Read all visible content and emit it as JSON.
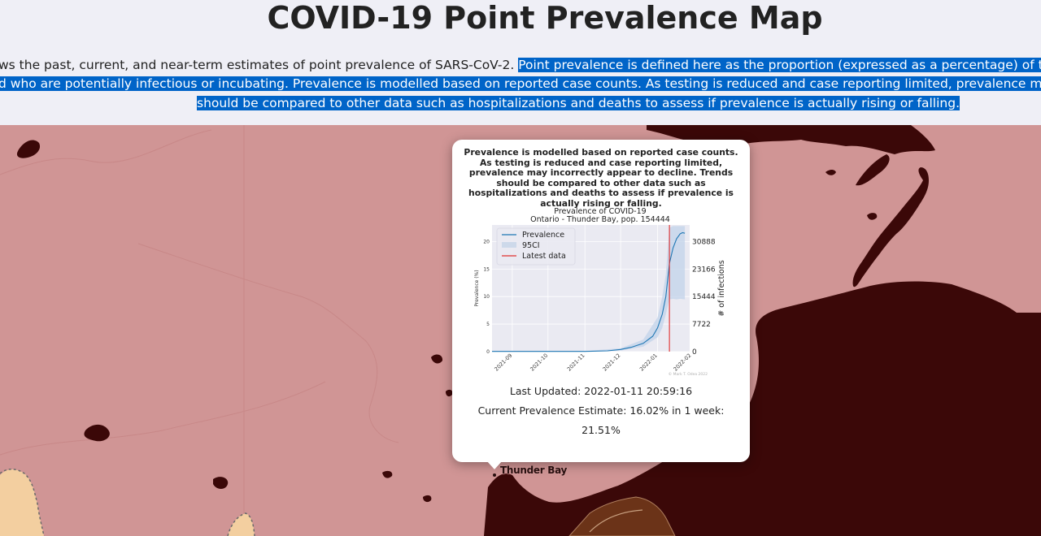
{
  "page": {
    "title": "COVID-19 Point Prevalence Map",
    "intro_line1_plain": "ws the past, current, and near-term estimates of point prevalence of SARS-CoV-2. ",
    "intro_line1_selected": "Point prevalence is defined here as the proportion (expressed as a percentage) of the population c",
    "intro_line2": "d who are potentially infectious or incubating. Prevalence is modelled based on reported case counts. As testing is reduced and case reporting limited, prevalence may incorrectly a",
    "intro_line3": "should be compared to other data such as hospitalizations and deaths to assess if prevalence is actually rising or falling."
  },
  "map": {
    "label": "Thunder Bay",
    "colors": {
      "region": "#d09595",
      "water": "#3b0808",
      "land_light": "#f3cfa0",
      "brown": "#6b3318"
    }
  },
  "popup": {
    "disclaimer": "Prevalence is modelled based on reported case counts. As testing is reduced and case reporting limited, prevalence may incorrectly appear to decline. Trends should be compared to other data such as hospitalizations and deaths to assess if prevalence is actually rising or falling.",
    "last_updated": "Last Updated: 2022-01-11 20:59:16",
    "estimate_line1": "Current Prevalence Estimate: 16.02% in 1 week:",
    "estimate_line2": "21.51%"
  },
  "chart_data": {
    "type": "line",
    "title": "Prevalence of COVID-19",
    "subtitle": "Ontario - Thunder Bay, pop. 154444",
    "ylabel": "Prevalence (%)",
    "ylabel_right": "# of infections",
    "ylim": [
      0,
      23
    ],
    "yticks": [
      0,
      5,
      10,
      15,
      20
    ],
    "yticks_right": [
      "0",
      "7722",
      "15444",
      "23166",
      "30888"
    ],
    "xticks": [
      "2021-09",
      "2021-10",
      "2021-11",
      "2021-12",
      "2022-01",
      "2022-02"
    ],
    "grid": true,
    "legend": "top-left",
    "legend_entries": [
      "Prevalence",
      "95CI",
      "Latest data"
    ],
    "latest_data_x": "2022-01-11",
    "watermark": "© Mark T. Odea 2022",
    "series": [
      {
        "name": "Prevalence",
        "x": [
          "2021-08-15",
          "2021-09-01",
          "2021-10-01",
          "2021-11-01",
          "2021-11-20",
          "2021-12-01",
          "2021-12-10",
          "2021-12-20",
          "2021-12-28",
          "2022-01-01",
          "2022-01-05",
          "2022-01-08",
          "2022-01-11",
          "2022-01-14",
          "2022-01-17",
          "2022-01-20",
          "2022-01-22",
          "2022-01-24"
        ],
        "values": [
          0.05,
          0.05,
          0.05,
          0.05,
          0.15,
          0.4,
          0.8,
          1.5,
          2.8,
          4.3,
          6.8,
          10.0,
          16.0,
          18.8,
          20.5,
          21.4,
          21.6,
          21.5
        ]
      },
      {
        "name": "95CI",
        "x": [
          "2021-08-15",
          "2021-11-01",
          "2021-12-01",
          "2021-12-20",
          "2022-01-01",
          "2022-01-05",
          "2022-01-08",
          "2022-01-11",
          "2022-01-14",
          "2022-01-17",
          "2022-01-20",
          "2022-01-24"
        ],
        "lower": [
          0,
          0,
          0.2,
          0.9,
          2.6,
          4.3,
          6.8,
          9.5,
          9.6,
          9.5,
          9.6,
          9.5
        ],
        "upper": [
          0.1,
          0.1,
          0.6,
          2.2,
          6.2,
          10.0,
          14.0,
          22.5,
          22.8,
          22.8,
          22.8,
          22.8
        ]
      }
    ]
  }
}
